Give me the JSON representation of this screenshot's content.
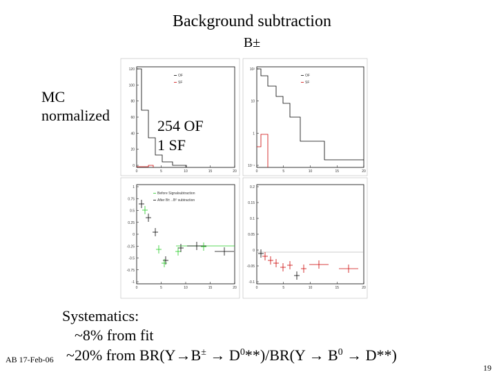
{
  "title": "Background subtraction",
  "subtitle": "B±",
  "left_note": [
    "MC",
    "normalized"
  ],
  "counts": [
    "254 OF",
    "1 SF"
  ],
  "plots": [
    {
      "yticks": [
        "120",
        "100",
        "80",
        "60",
        "40",
        "20",
        "0"
      ],
      "xticks": [
        "0",
        "5",
        "10",
        "15",
        "20"
      ],
      "legend": [
        "OF",
        "SF"
      ]
    },
    {
      "yticks": [
        "10²",
        "10",
        "1",
        "10⁻¹"
      ],
      "xticks": [
        "0",
        "5",
        "10",
        "15",
        "20"
      ],
      "legend": [
        "OF",
        "SF"
      ]
    },
    {
      "yticks": [
        "1",
        "0.75",
        "0.5",
        "0.25",
        "0",
        "-0.25",
        "-0.5",
        "-0.75",
        "-1"
      ],
      "xticks": [
        "0",
        "5",
        "10",
        "15",
        "20"
      ],
      "legend": [
        "Before Signalsubtraction",
        "After B±→B⁰ subtraction"
      ]
    },
    {
      "yticks": [
        "0.2",
        "0.15",
        "0.1",
        "0.05",
        "0",
        "-0.05",
        "-0.1"
      ],
      "xticks": [
        "0",
        "5",
        "10",
        "15",
        "20"
      ]
    }
  ],
  "systematics": {
    "heading": "Systematics:",
    "line1": "~8% from fit",
    "line2": [
      "~20% from BR(Y→B",
      "±",
      " → D",
      "0",
      "**)/BR(Y → B",
      "0",
      " → D**)"
    ]
  },
  "footer": {
    "author_date": "AB 17-Feb-06",
    "page": "19"
  }
}
